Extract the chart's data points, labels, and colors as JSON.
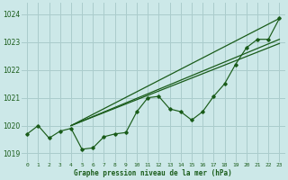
{
  "bg_color": "#cce8e8",
  "grid_color": "#aacccc",
  "line_color": "#1a5c1a",
  "marker_color": "#1a5c1a",
  "xlabel": "Graphe pression niveau de la mer (hPa)",
  "ylim": [
    1018.7,
    1024.4
  ],
  "xlim": [
    -0.5,
    23.5
  ],
  "yticks": [
    1019,
    1020,
    1021,
    1022,
    1023,
    1024
  ],
  "xticks": [
    0,
    1,
    2,
    3,
    4,
    5,
    6,
    7,
    8,
    9,
    10,
    11,
    12,
    13,
    14,
    15,
    16,
    17,
    18,
    19,
    20,
    21,
    22,
    23
  ],
  "main_data": [
    1019.7,
    1020.0,
    1019.55,
    1019.8,
    1019.9,
    1019.15,
    1019.2,
    1019.6,
    1019.7,
    1019.75,
    1020.5,
    1021.0,
    1021.05,
    1020.6,
    1020.5,
    1020.2,
    1020.5,
    1021.05,
    1021.5,
    1022.2,
    1022.8,
    1023.1,
    1023.1,
    1023.85
  ],
  "trend_lines": [
    {
      "x": [
        4,
        23
      ],
      "y": [
        1020.0,
        1023.85
      ]
    },
    {
      "x": [
        4,
        23
      ],
      "y": [
        1020.0,
        1023.1
      ]
    },
    {
      "x": [
        4,
        23
      ],
      "y": [
        1020.0,
        1022.95
      ]
    }
  ],
  "figsize": [
    3.2,
    2.0
  ],
  "dpi": 100
}
